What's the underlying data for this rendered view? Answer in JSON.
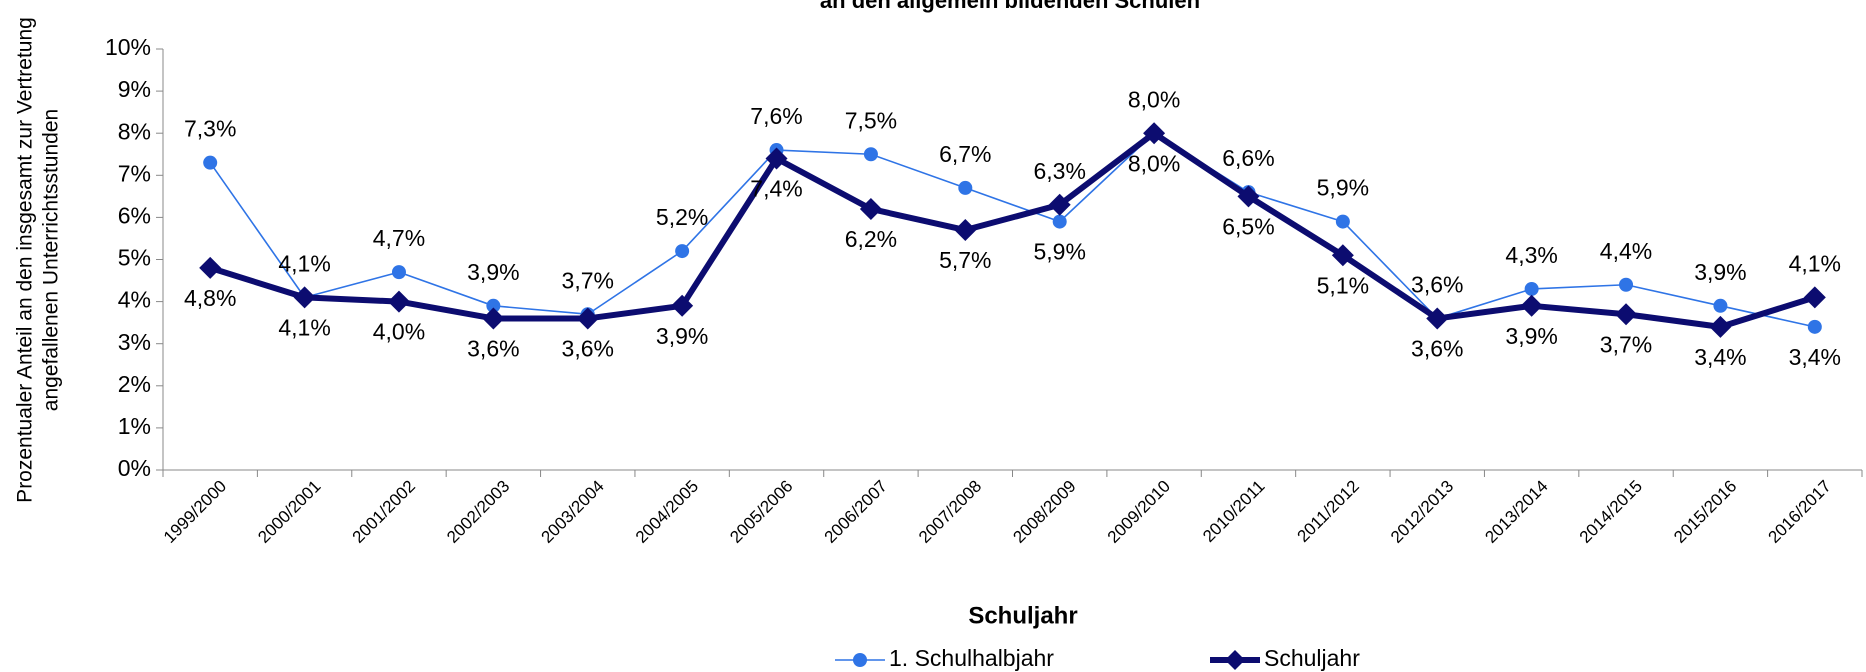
{
  "chart_data": {
    "type": "line",
    "title": "an den allgemein bildenden Schulen",
    "y_label": [
      "Prozentualer Anteil an den insgesamt zur Vertretung",
      "angefallenen Unterrichtsstunden"
    ],
    "x_label": "Schuljahr",
    "categories": [
      "1999/2000",
      "2000/2001",
      "2001/2002",
      "2002/2003",
      "2003/2004",
      "2004/2005",
      "2005/2006",
      "2006/2007",
      "2007/2008",
      "2008/2009",
      "2009/2010",
      "2010/2011",
      "2011/2012",
      "2012/2013",
      "2013/2014",
      "2014/2015",
      "2015/2016",
      "2016/2017"
    ],
    "series": [
      {
        "name": "1. Schulhalbjahr",
        "color": "#2f74e6",
        "marker": "circle",
        "values": [
          7.3,
          4.1,
          4.7,
          3.9,
          3.7,
          5.2,
          7.6,
          7.5,
          6.7,
          5.9,
          8.0,
          6.6,
          5.9,
          3.6,
          4.3,
          4.4,
          3.9,
          3.4
        ],
        "value_labels": [
          "7,3%",
          "4,1%",
          "4,7%",
          "3,9%",
          "3,7%",
          "5,2%",
          "7,6%",
          "7,5%",
          "6,7%",
          "5,9%",
          "8,0%",
          "6,6%",
          "5,9%",
          "3,6%",
          "4,3%",
          "4,4%",
          "3,9%",
          "3,4%"
        ]
      },
      {
        "name": "Schuljahr",
        "color": "#0c0c70",
        "marker": "diamond",
        "values": [
          4.8,
          4.1,
          4.0,
          3.6,
          3.6,
          3.9,
          7.4,
          6.2,
          5.7,
          6.3,
          8.0,
          6.5,
          5.1,
          3.6,
          3.9,
          3.7,
          3.4,
          4.1
        ],
        "value_labels": [
          "4,8%",
          "4,1%",
          "4,0%",
          "3,6%",
          "3,6%",
          "3,9%",
          "7,4%",
          "6,2%",
          "5,7%",
          "6,3%",
          "8,0%",
          "6,5%",
          "5,1%",
          "3,6%",
          "3,9%",
          "3,7%",
          "3,4%",
          "4,1%"
        ]
      }
    ],
    "ylim": [
      0,
      10
    ],
    "yticks": [
      {
        "value": 0,
        "label": "0%"
      },
      {
        "value": 1,
        "label": "1%"
      },
      {
        "value": 2,
        "label": "2%"
      },
      {
        "value": 3,
        "label": "3%"
      },
      {
        "value": 4,
        "label": "4%"
      },
      {
        "value": 5,
        "label": "5%"
      },
      {
        "value": 6,
        "label": "6%"
      },
      {
        "value": 7,
        "label": "7%"
      },
      {
        "value": 8,
        "label": "8%"
      },
      {
        "value": 9,
        "label": "9%"
      },
      {
        "value": 10,
        "label": "10%"
      }
    ],
    "grid": false
  }
}
